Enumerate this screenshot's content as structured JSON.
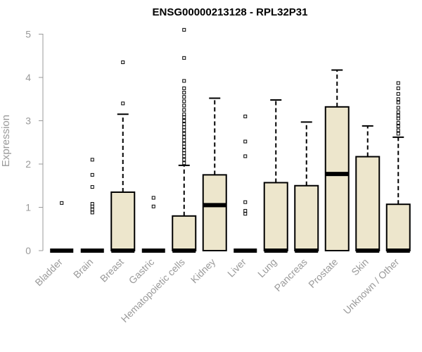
{
  "chart_data": {
    "type": "box",
    "title": "ENSG00000213128 - RPL32P31",
    "ylabel": "Expression",
    "xlabel": "",
    "ylim": [
      0,
      5.2
    ],
    "yticks": [
      0,
      1,
      2,
      3,
      4,
      5
    ],
    "categories": [
      "Bladder",
      "Brain",
      "Breast",
      "Gastric",
      "Hematopoietic cells",
      "Kidney",
      "Liver",
      "Lung",
      "Pancreas",
      "Prostate",
      "Skin",
      "Unknown / Other"
    ],
    "box_color": "#ede6cc",
    "boxes": [
      {
        "category": "Bladder",
        "min": 0,
        "q1": 0,
        "median": 0,
        "q3": 0,
        "max": 0,
        "outliers": [
          1.1
        ]
      },
      {
        "category": "Brain",
        "min": 0,
        "q1": 0,
        "median": 0,
        "q3": 0,
        "max": 0,
        "outliers": [
          2.1,
          1.75,
          1.47,
          1.08,
          1.02,
          0.95,
          0.88
        ]
      },
      {
        "category": "Breast",
        "min": 0,
        "q1": 0,
        "median": 0,
        "q3": 1.35,
        "max": 3.15,
        "outliers": [
          3.4,
          4.35
        ]
      },
      {
        "category": "Gastric",
        "min": 0,
        "q1": 0,
        "median": 0,
        "q3": 0,
        "max": 0,
        "outliers": [
          1.22,
          1.02
        ]
      },
      {
        "category": "Hematopoietic cells",
        "min": 0,
        "q1": 0,
        "median": 0,
        "q3": 0.8,
        "max": 1.97,
        "outliers": [
          2.02,
          2.1,
          2.18,
          2.25,
          2.32,
          2.4,
          2.47,
          2.55,
          2.62,
          2.7,
          2.78,
          2.85,
          2.92,
          3.0,
          3.08,
          3.15,
          3.25,
          3.35,
          3.45,
          3.55,
          3.65,
          3.75,
          3.92,
          4.45,
          5.1
        ]
      },
      {
        "category": "Kidney",
        "min": 0,
        "q1": 0,
        "median": 1.05,
        "q3": 1.75,
        "max": 3.52,
        "outliers": []
      },
      {
        "category": "Liver",
        "min": 0,
        "q1": 0,
        "median": 0,
        "q3": 0,
        "max": 0,
        "outliers": [
          3.1,
          2.52,
          2.18,
          1.12,
          0.92,
          0.85
        ]
      },
      {
        "category": "Lung",
        "min": 0,
        "q1": 0,
        "median": 0,
        "q3": 1.57,
        "max": 3.48,
        "outliers": []
      },
      {
        "category": "Pancreas",
        "min": 0,
        "q1": 0,
        "median": 0,
        "q3": 1.5,
        "max": 2.97,
        "outliers": []
      },
      {
        "category": "Prostate",
        "min": 0,
        "q1": 0,
        "median": 1.77,
        "q3": 3.32,
        "max": 4.17,
        "outliers": []
      },
      {
        "category": "Skin",
        "min": 0,
        "q1": 0,
        "median": 0,
        "q3": 2.17,
        "max": 2.88,
        "outliers": []
      },
      {
        "category": "Unknown / Other",
        "min": 0,
        "q1": 0,
        "median": 0,
        "q3": 1.07,
        "max": 2.62,
        "outliers": [
          2.7,
          2.78,
          2.87,
          2.95,
          3.05,
          3.12,
          3.2,
          3.3,
          3.42,
          3.5,
          3.62,
          3.75,
          3.87
        ]
      }
    ]
  }
}
